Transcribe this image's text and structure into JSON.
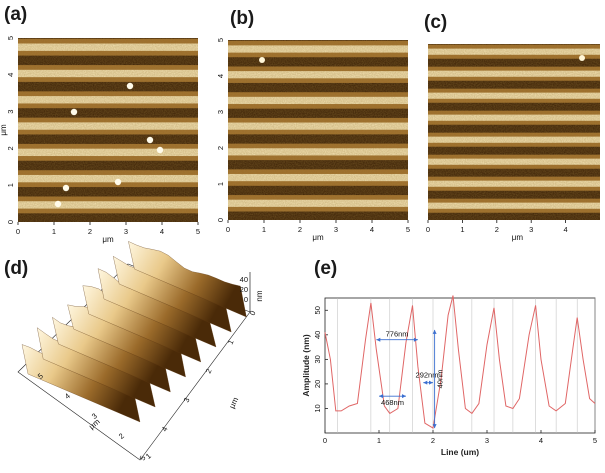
{
  "panel_labels": [
    "(a)",
    "(b)",
    "(c)",
    "(d)",
    "(e)"
  ],
  "afm_images": [
    {
      "id": "a",
      "x_ticks": [
        "0",
        "1",
        "2",
        "3",
        "4",
        "5"
      ],
      "y_ticks": [
        "0",
        "1",
        "2",
        "3",
        "4",
        "5"
      ],
      "x_unit": "μm",
      "y_unit": "μm",
      "stripes": 7
    },
    {
      "id": "b",
      "x_ticks": [
        "0",
        "1",
        "2",
        "3",
        "4",
        "5"
      ],
      "y_ticks": [
        "0",
        "1",
        "2",
        "3",
        "4",
        "5"
      ],
      "x_unit": "μm",
      "stripes": 7
    },
    {
      "id": "c",
      "x_ticks": [
        "0",
        "1",
        "2",
        "3",
        "4"
      ],
      "x_unit": "μm",
      "stripes": 8
    }
  ],
  "surface_3d": {
    "z_ticks": [
      "40",
      "20",
      "0"
    ],
    "z_unit": "nm",
    "depth_ticks": [
      "0",
      "1",
      "2",
      "3",
      "4",
      "5"
    ],
    "width_ticks": [
      "1",
      "2",
      "3",
      "4",
      "5"
    ],
    "width_unit": "μm",
    "depth_unit": "μm",
    "ridges": 8
  },
  "chart_data": {
    "type": "line",
    "xlabel": "Line (um)",
    "ylabel": "Amplitude (nm)",
    "xlim": [
      0,
      5
    ],
    "ylim": [
      0,
      55
    ],
    "x_ticks": [
      0,
      1,
      2,
      3,
      4,
      5
    ],
    "y_ticks": [
      10,
      20,
      30,
      40,
      50
    ],
    "color": "#e06666",
    "peaks_x": [
      0.85,
      1.62,
      2.37,
      3.13,
      3.9,
      4.67
    ],
    "valley_x": [
      0.23,
      1.2,
      2.0,
      2.72,
      3.48,
      4.28,
      5.0
    ],
    "x": [
      0,
      0.1,
      0.2,
      0.3,
      0.45,
      0.6,
      0.75,
      0.85,
      0.95,
      1.1,
      1.2,
      1.35,
      1.5,
      1.62,
      1.72,
      1.85,
      2.0,
      2.15,
      2.28,
      2.37,
      2.47,
      2.6,
      2.72,
      2.85,
      3.0,
      3.13,
      3.23,
      3.35,
      3.48,
      3.6,
      3.78,
      3.9,
      4.0,
      4.15,
      4.28,
      4.45,
      4.6,
      4.67,
      4.78,
      4.9,
      5.0
    ],
    "y": [
      41,
      30,
      9,
      9,
      11,
      12,
      38,
      53,
      34,
      11,
      8,
      10,
      37,
      52,
      27,
      4,
      2,
      22,
      48,
      56,
      34,
      10,
      8,
      12,
      36,
      51,
      30,
      11,
      10,
      14,
      40,
      52,
      30,
      11,
      9,
      12,
      36,
      47,
      30,
      14,
      12
    ],
    "annotations": [
      {
        "text": "776nm",
        "x1": 0.95,
        "x2": 1.72,
        "y": 38,
        "type": "horizontal"
      },
      {
        "text": "292nm",
        "x1": 1.82,
        "x2": 2.0,
        "y": 20.5,
        "type": "horizontal"
      },
      {
        "text": "468nm",
        "x1": 1.0,
        "x2": 1.5,
        "y": 15,
        "type": "horizontal"
      },
      {
        "text": "40nm",
        "x": 2.03,
        "y1": 2,
        "y2": 42,
        "type": "vertical"
      }
    ]
  }
}
